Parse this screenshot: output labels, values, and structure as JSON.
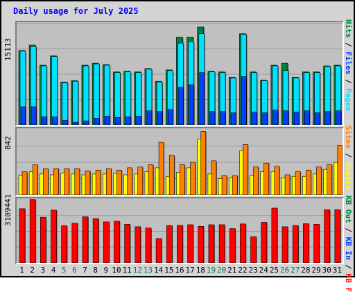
{
  "title": "Daily usage for July 2025",
  "colors": {
    "pages": "#0040ff",
    "files": "#00e0ff",
    "hits": "#008040",
    "visits": "#ffff00",
    "sites": "#ff8000",
    "kbin": "#ff0000",
    "kbout": "#00e0ff",
    "kbf": "#ff0000"
  },
  "legends": {
    "top": [
      {
        "text": "Pages",
        "color": "#00e0ff"
      },
      {
        "text": "Files",
        "color": "#0040ff"
      },
      {
        "text": "Hits",
        "color": "#008040"
      }
    ],
    "middle": [
      {
        "text": "Visits",
        "color": "#ffff00"
      },
      {
        "text": "Sites",
        "color": "#ff8000"
      }
    ],
    "bottom": [
      {
        "text": "KB F",
        "color": "#ff0000"
      },
      {
        "text": "KB In",
        "color": "#0040ff"
      },
      {
        "text": "KB Out",
        "color": "#008040"
      }
    ]
  },
  "chart_data": [
    {
      "type": "bar",
      "title": "Daily usage for July 2025",
      "ymax_label": "15113",
      "ylim": [
        0,
        15113
      ],
      "categories": [
        "1",
        "2",
        "3",
        "4",
        "5",
        "6",
        "7",
        "8",
        "9",
        "10",
        "11",
        "12",
        "13",
        "14",
        "15",
        "16",
        "17",
        "18",
        "19",
        "20",
        "21",
        "22",
        "23",
        "24",
        "25",
        "26",
        "27",
        "28",
        "29",
        "30",
        "31"
      ],
      "weekend_days": [
        "5",
        "6",
        "12",
        "13",
        "19",
        "20",
        "26",
        "27"
      ],
      "series": [
        {
          "name": "Hits",
          "values": [
            11100,
            11900,
            8900,
            10300,
            6400,
            6600,
            8900,
            9200,
            9000,
            7900,
            8000,
            7900,
            8400,
            6500,
            8200,
            13100,
            13100,
            14600,
            8000,
            7900,
            7100,
            13600,
            7900,
            6700,
            8900,
            9200,
            7100,
            7900,
            7900,
            8800,
            8900
          ]
        },
        {
          "name": "Files",
          "values": [
            11000,
            11700,
            8800,
            10200,
            6300,
            6500,
            8800,
            9100,
            8900,
            7800,
            7900,
            7800,
            8300,
            6400,
            8100,
            12200,
            12400,
            13600,
            7900,
            7800,
            7000,
            13500,
            7800,
            6600,
            8800,
            8100,
            7000,
            7800,
            7800,
            8700,
            8800
          ]
        },
        {
          "name": "Pages",
          "values": [
            2700,
            2700,
            1200,
            1200,
            700,
            400,
            600,
            1000,
            1300,
            1100,
            1200,
            1300,
            2100,
            2000,
            2300,
            5600,
            6000,
            7800,
            2000,
            2000,
            1800,
            7200,
            1900,
            1800,
            2200,
            2100,
            1900,
            2100,
            1800,
            2000,
            2100
          ]
        }
      ]
    },
    {
      "type": "bar",
      "ymax_label": "842",
      "ylim": [
        0,
        842
      ],
      "categories": [
        "1",
        "2",
        "3",
        "4",
        "5",
        "6",
        "7",
        "8",
        "9",
        "10",
        "11",
        "12",
        "13",
        "14",
        "15",
        "16",
        "17",
        "18",
        "19",
        "20",
        "21",
        "22",
        "23",
        "24",
        "25",
        "26",
        "27",
        "28",
        "29",
        "30",
        "31"
      ],
      "series": [
        {
          "name": "Visits",
          "values": [
            250,
            300,
            270,
            260,
            280,
            270,
            260,
            270,
            270,
            280,
            260,
            270,
            300,
            350,
            240,
            290,
            350,
            720,
            270,
            210,
            220,
            570,
            250,
            300,
            300,
            220,
            240,
            240,
            270,
            330,
            420
          ]
        },
        {
          "name": "Sites",
          "values": [
            300,
            390,
            340,
            340,
            340,
            340,
            310,
            320,
            340,
            320,
            350,
            360,
            390,
            680,
            510,
            390,
            420,
            820,
            440,
            250,
            250,
            650,
            360,
            410,
            370,
            260,
            300,
            320,
            360,
            390,
            640
          ]
        }
      ]
    },
    {
      "type": "bar",
      "ymax_label": "3109441",
      "ylim": [
        0,
        3109441
      ],
      "categories": [
        "1",
        "2",
        "3",
        "4",
        "5",
        "6",
        "7",
        "8",
        "9",
        "10",
        "11",
        "12",
        "13",
        "14",
        "15",
        "16",
        "17",
        "18",
        "19",
        "20",
        "21",
        "22",
        "23",
        "24",
        "25",
        "26",
        "27",
        "28",
        "29",
        "30",
        "31"
      ],
      "series": [
        {
          "name": "KB F",
          "values": [
            2670000,
            3120000,
            2250000,
            2600000,
            1830000,
            1950000,
            2270000,
            2180000,
            2020000,
            2050000,
            1900000,
            1780000,
            1720000,
            1200000,
            1840000,
            1850000,
            1880000,
            1800000,
            1880000,
            1880000,
            1690000,
            1920000,
            1290000,
            2000000,
            2700000,
            1780000,
            1840000,
            1930000,
            1900000,
            2620000,
            2620000
          ]
        }
      ]
    }
  ]
}
